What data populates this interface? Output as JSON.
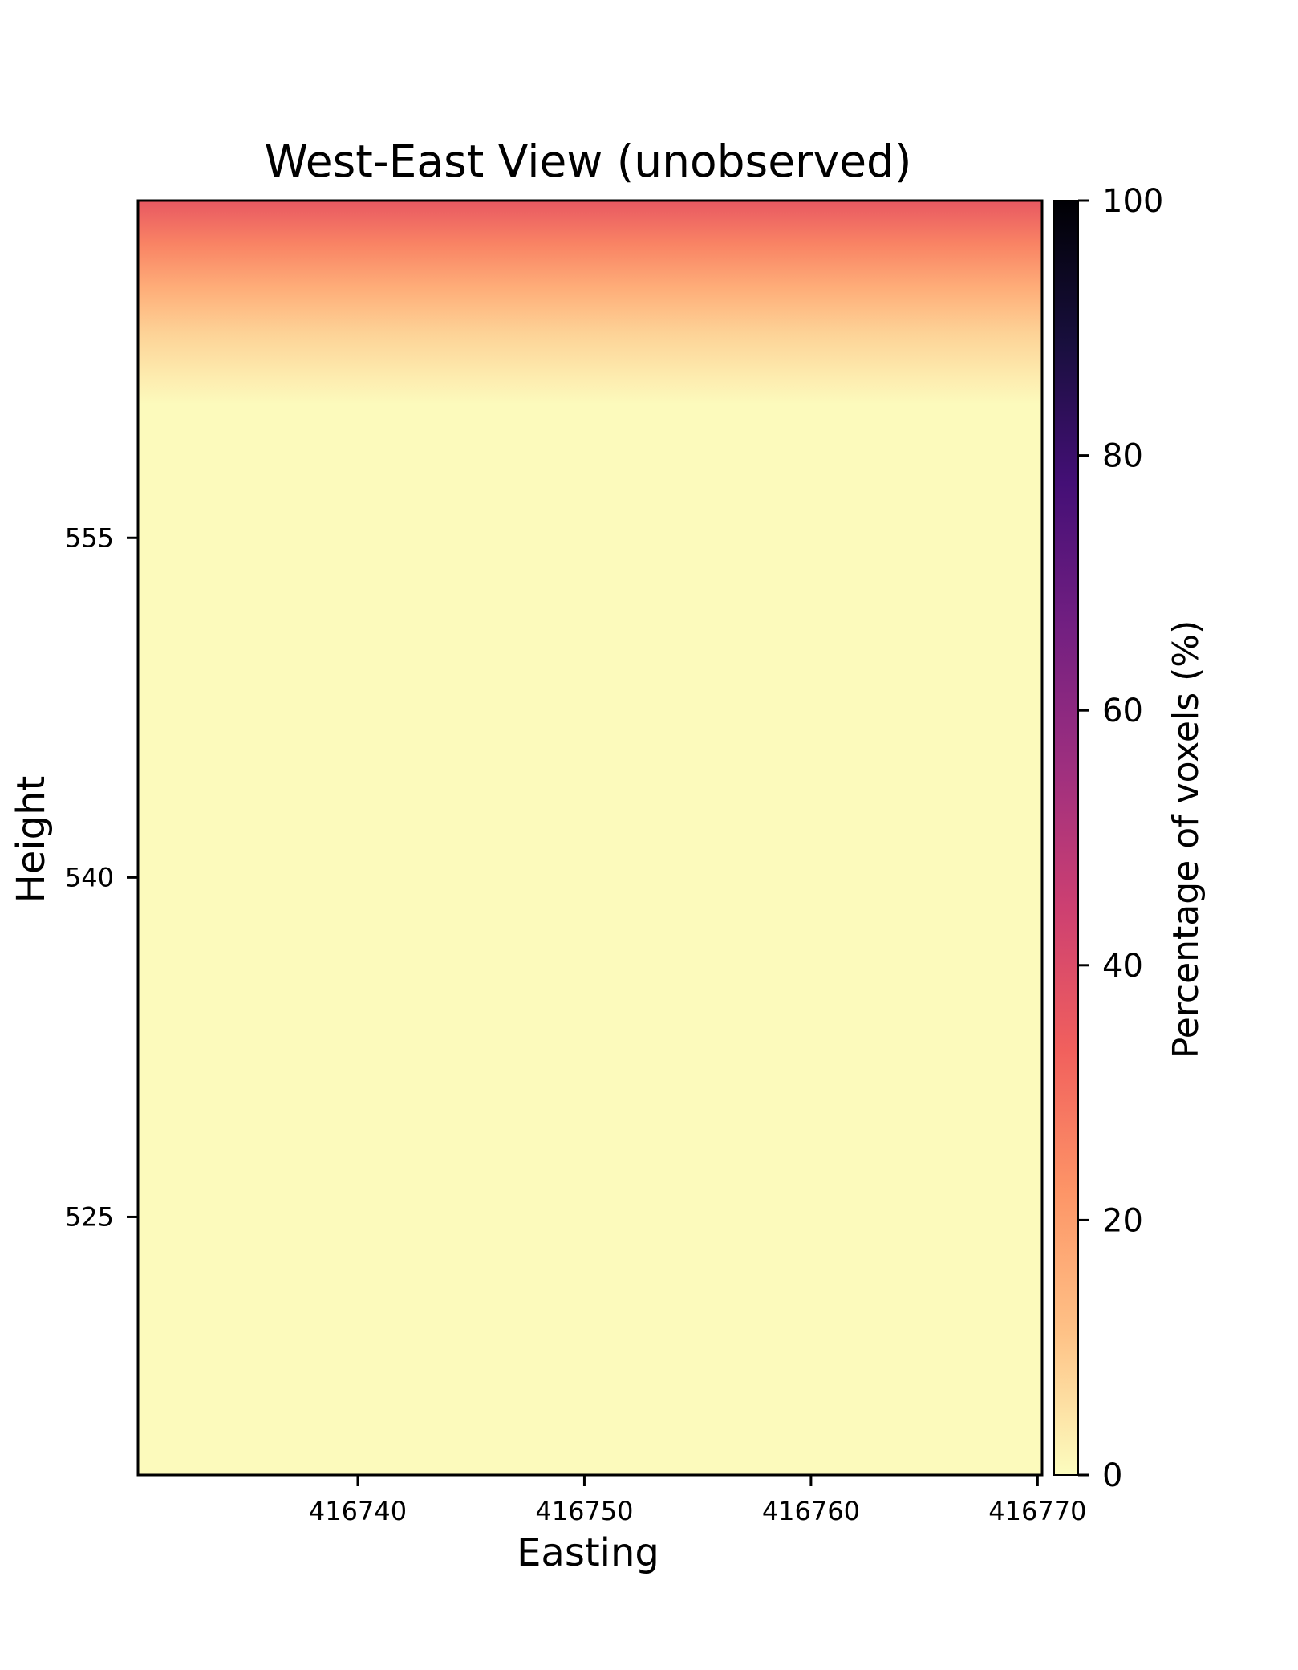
{
  "chart_data": {
    "type": "heatmap",
    "title": "West-East View (unobserved)",
    "xlabel": "Easting",
    "ylabel": "Height",
    "xlim": [
      416730.3,
      416770.2
    ],
    "ylim": [
      513.6,
      569.9
    ],
    "xticks": [
      416740,
      416750,
      416760,
      416770
    ],
    "xtick_labels": [
      "416740",
      "416750",
      "416760",
      "416770"
    ],
    "yticks": [
      525,
      540,
      555
    ],
    "ytick_labels": [
      "525",
      "540",
      "555"
    ],
    "grid": false,
    "colormap": "magma_r",
    "colorbar": {
      "label": "Percentage of voxels (%)",
      "range": [
        0,
        100
      ],
      "ticks": [
        0,
        20,
        40,
        60,
        80,
        100
      ],
      "tick_labels": [
        "0",
        "20",
        "40",
        "60",
        "80",
        "100"
      ]
    },
    "vertical_profile": {
      "description_height": "Height",
      "heights": [
        569.9,
        568.0,
        566.0,
        564.0,
        562.0,
        560.9,
        513.6
      ],
      "percent_unobserved": [
        36,
        26,
        16,
        8,
        3,
        0.5,
        0.5
      ]
    }
  },
  "colors": {
    "magma_r_stops": [
      "#fcfdbf",
      "#fec287",
      "#fd9567",
      "#f1605d",
      "#cd4071",
      "#9e2f7f",
      "#721f81",
      "#440f76",
      "#180f3d",
      "#000004"
    ]
  }
}
